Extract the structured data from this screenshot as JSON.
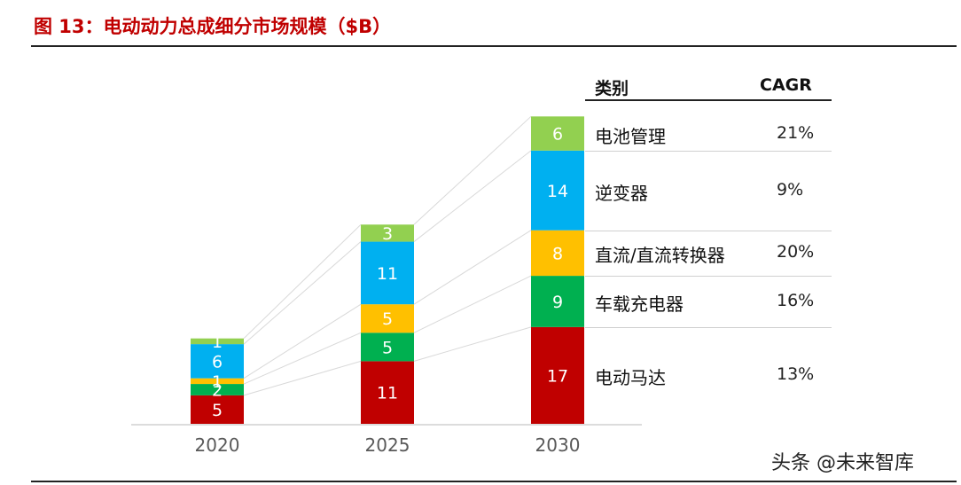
{
  "title": "图 13：电动动力总成细分市场规模（$B）",
  "legend_header": {
    "category": "类别",
    "cagr": "CAGR"
  },
  "watermark": "头条 @未来智库",
  "colors": {
    "电池管理": "#92d050",
    "逆变器": "#00b0f0",
    "直流/直流转换器": "#ffc000",
    "车载充电器": "#00b050",
    "电动马达": "#c00000"
  },
  "chart_data": {
    "type": "bar",
    "stacked": true,
    "categories": [
      "2020",
      "2025",
      "2030"
    ],
    "series": [
      {
        "name": "电动马达",
        "values": [
          5,
          11,
          17
        ],
        "cagr": "13%"
      },
      {
        "name": "车载充电器",
        "values": [
          2,
          5,
          9
        ],
        "cagr": "16%"
      },
      {
        "name": "直流/直流转换器",
        "values": [
          1,
          5,
          8
        ],
        "cagr": "20%"
      },
      {
        "name": "逆变器",
        "values": [
          6,
          11,
          14
        ],
        "cagr": "9%"
      },
      {
        "name": "电池管理",
        "values": [
          1,
          3,
          6
        ],
        "cagr": "21%"
      }
    ],
    "title": "图 13：电动动力总成细分市场规模（$B）",
    "xlabel": "",
    "ylabel": "",
    "ylim": [
      0,
      54
    ],
    "grid": false,
    "legend": "right"
  }
}
